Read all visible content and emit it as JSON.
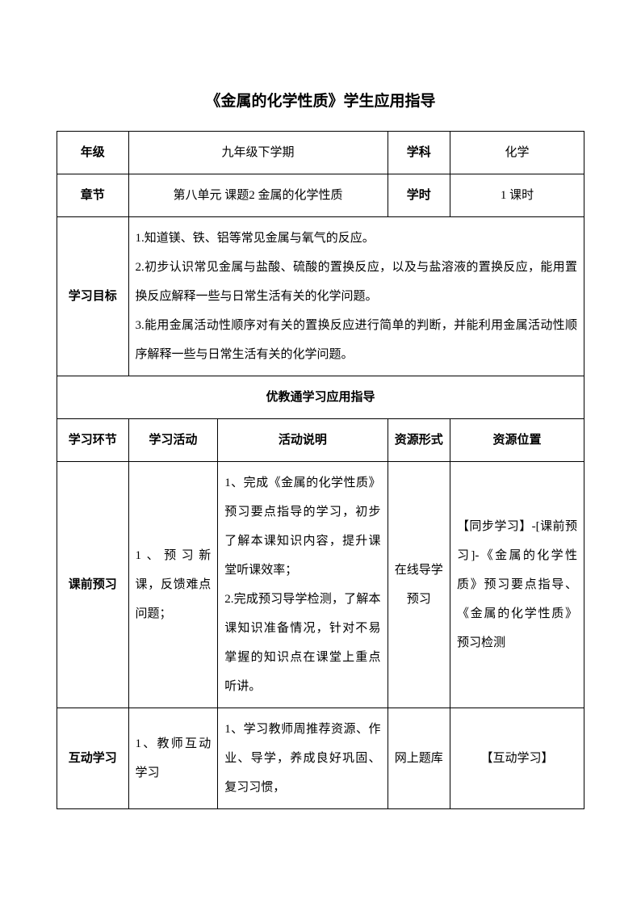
{
  "title": "《金属的化学性质》学生应用指导",
  "row1": {
    "label1": "年级",
    "value1": "九年级下学期",
    "label2": "学科",
    "value2": "化学"
  },
  "row2": {
    "label1": "章节",
    "value1": "第八单元 课题2 金属的化学性质",
    "label2": "学时",
    "value2": "1 课时"
  },
  "row3": {
    "label": "学习目标",
    "content": "1.知道镁、铁、铝等常见金属与氧气的反应。\n2.初步认识常见金属与盐酸、硫酸的置换反应，以及与盐溶液的置换反应，能用置换反应解释一些与日常生活有关的化学问题。\n3.能用金属活动性顺序对有关的置换反应进行简单的判断，并能利用金属活动性顺序解释一些与日常生活有关的化学问题。"
  },
  "section_header": "优教通学习应用指导",
  "table2_headers": {
    "h1": "学习环节",
    "h2": "学习活动",
    "h3": "活动说明",
    "h4": "资源形式",
    "h5": "资源位置"
  },
  "table2_row1": {
    "c1": "课前预习",
    "c2": "1、预习新课，反馈难点问题；",
    "c3": "1、完成《金属的化学性质》预习要点指导的学习，初步了解本课知识内容，提升课堂听课效率；\n2.完成预习导学检测，了解本课知识准备情况，针对不易掌握的知识点在课堂上重点听讲。",
    "c4": "在线导学预习",
    "c5": "【同步学习】-[课前预习]-《金属的化学性质》预习要点指导、《金属的化学性质》预习检测"
  },
  "table2_row2": {
    "c1": "互动学习",
    "c2": "1、教师互动学习",
    "c3": "1、学习教师周推荐资源、作业、导学，养成良好巩固、复习习惯，",
    "c4": "网上题库",
    "c5": "【互动学习】"
  }
}
